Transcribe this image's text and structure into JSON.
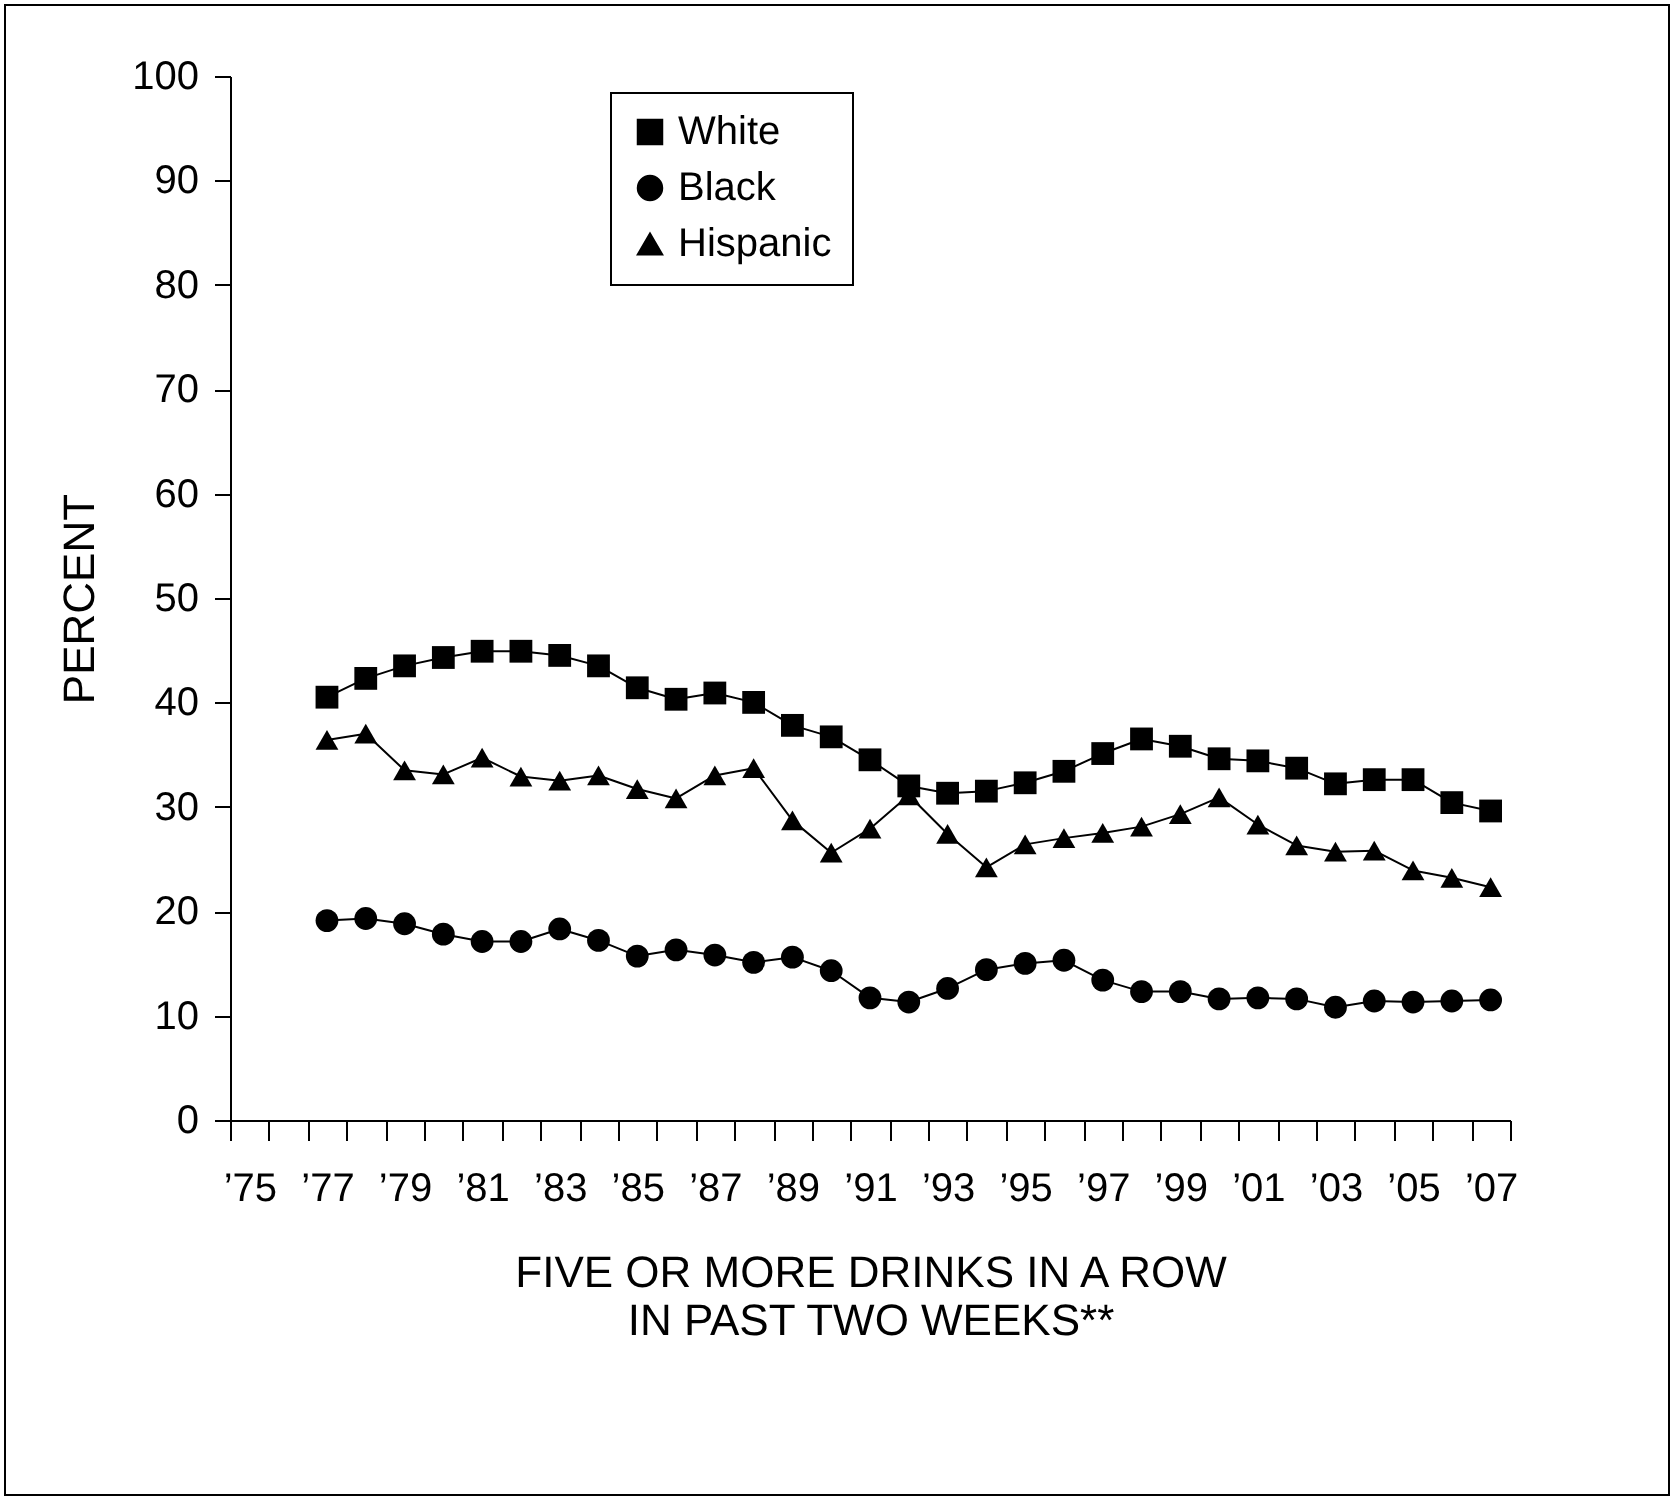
{
  "chart_data": {
    "type": "line",
    "xlabel": "FIVE OR MORE DRINKS IN A ROW\nIN PAST TWO WEEKS**",
    "ylabel": "PERCENT",
    "categories": [
      "’75",
      null,
      "’77",
      null,
      "’79",
      null,
      "’81",
      null,
      "’83",
      null,
      "’85",
      null,
      "’87",
      null,
      "’89",
      null,
      "’91",
      null,
      "’93",
      null,
      "’95",
      null,
      "’97",
      null,
      "’99",
      null,
      "’01",
      null,
      "’03",
      null,
      "’05",
      null,
      "’07"
    ],
    "series": [
      {
        "name": "White",
        "color": "#000000",
        "marker": "square",
        "values": [
          null,
          null,
          40.5,
          42.3,
          43.5,
          44.3,
          44.9,
          44.9,
          44.5,
          43.5,
          41.4,
          40.3,
          40.9,
          40.0,
          37.8,
          36.7,
          34.5,
          32.0,
          31.3,
          31.5,
          32.3,
          33.4,
          35.1,
          36.5,
          35.8,
          34.6,
          34.4,
          33.7,
          32.2,
          32.6,
          32.6,
          30.4,
          29.6
        ]
      },
      {
        "name": "Black",
        "color": "#000000",
        "marker": "circle",
        "values": [
          null,
          null,
          19.1,
          19.3,
          18.8,
          17.8,
          17.1,
          17.1,
          18.3,
          17.2,
          15.7,
          16.3,
          15.8,
          15.1,
          15.6,
          14.3,
          11.7,
          11.3,
          12.6,
          14.4,
          15.0,
          15.3,
          13.4,
          12.3,
          12.3,
          11.6,
          11.7,
          11.6,
          10.8,
          11.4,
          11.3,
          11.4,
          11.5
        ]
      },
      {
        "name": "Hispanic",
        "color": "#000000",
        "marker": "triangle",
        "values": [
          null,
          null,
          36.4,
          37.0,
          33.5,
          33.1,
          34.7,
          32.9,
          32.5,
          33.0,
          31.7,
          30.8,
          33.0,
          33.7,
          28.7,
          25.6,
          27.9,
          31.1,
          27.4,
          24.2,
          26.4,
          27.0,
          27.5,
          28.1,
          29.3,
          30.9,
          28.3,
          26.3,
          25.7,
          25.8,
          23.9,
          23.2,
          22.3
        ]
      }
    ],
    "ylim": [
      0,
      100
    ],
    "yticks": [
      0,
      10,
      20,
      30,
      40,
      50,
      60,
      70,
      80,
      90,
      100
    ],
    "grid": false,
    "legend": "top",
    "line_style": "solid"
  }
}
